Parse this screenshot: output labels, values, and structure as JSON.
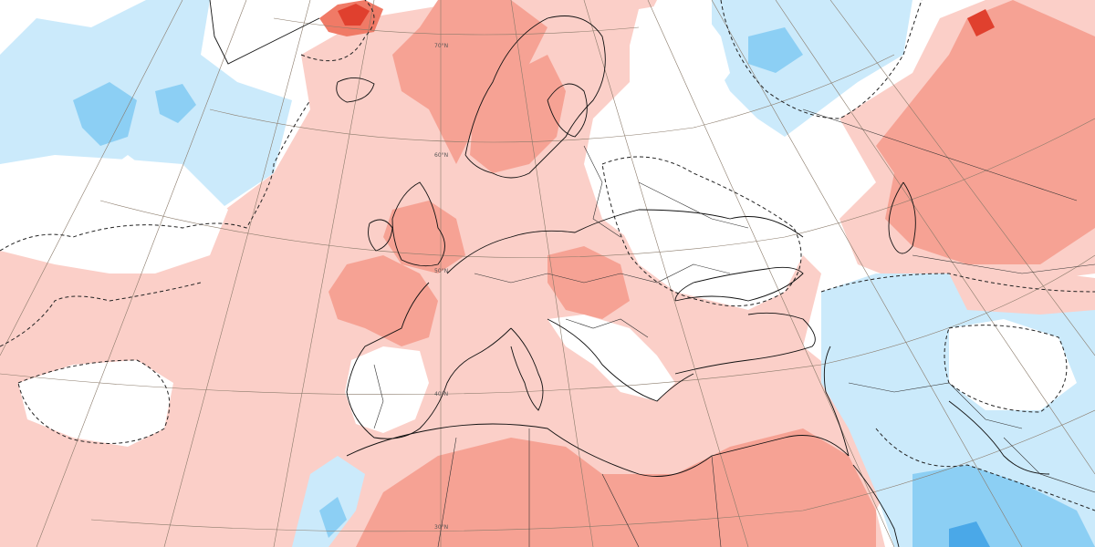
{
  "map": {
    "type": "anomaly-map",
    "region": "Europe and Mediterranean",
    "palette": {
      "neg_3": "#4aa8e8",
      "neg_2": "#8ccff4",
      "neg_1": "#cbeafb",
      "neutral": "#ffffff",
      "pos_1": "#fbcfc8",
      "pos_2": "#f6a294",
      "pos_3": "#f07a66",
      "pos_4": "#e0402e",
      "pos_5": "#c01a10",
      "land_outline": "#111111",
      "graticule": "#8a7a6a"
    },
    "parallel_labels": [
      "70°N",
      "60°N",
      "50°N",
      "40°N",
      "30°N"
    ],
    "contour_style": "dashed zero line"
  }
}
